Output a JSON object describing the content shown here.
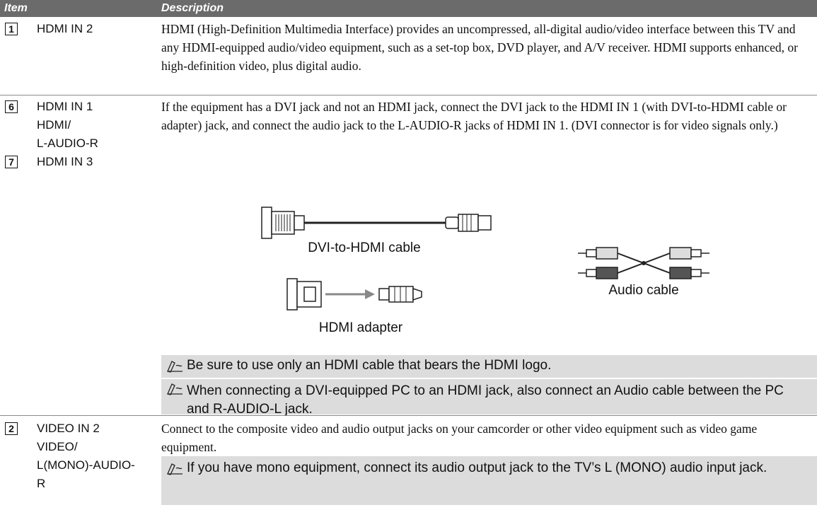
{
  "header": {
    "item": "Item",
    "description": "Description"
  },
  "rows": [
    {
      "entries": [
        {
          "number": "1",
          "lines": [
            "HDMI IN 2"
          ]
        }
      ],
      "description": "HDMI (High-Definition Multimedia Interface) provides an uncompressed, all-digital audio/video interface between this TV and any HDMI-equipped audio/video equipment, such as a set-top box, DVD player, and A/V receiver. HDMI supports enhanced, or high-definition video, plus digital audio."
    },
    {
      "entries": [
        {
          "number": "6",
          "lines": [
            "HDMI IN 1",
            "HDMI/",
            "L-AUDIO-R"
          ]
        },
        {
          "number": "7",
          "lines": [
            "HDMI IN 3"
          ]
        }
      ],
      "description": "If the equipment has a DVI jack and not an HDMI jack, connect the DVI jack to the HDMI IN 1 (with DVI-to-HDMI cable or adapter) jack, and connect the audio jack to the L-AUDIO-R jacks of HDMI IN 1. (DVI connector is for video signals only.)",
      "figures": {
        "dvi_cable": "DVI-to-HDMI cable",
        "adapter": "HDMI adapter",
        "audio_cable": "Audio cable"
      },
      "notes": [
        "Be sure to use only an HDMI cable that bears the HDMI logo.",
        "When connecting a DVI-equipped PC to an HDMI jack, also connect an Audio cable between the PC and R-AUDIO-L jack."
      ]
    },
    {
      "entries": [
        {
          "number": "2",
          "lines": [
            "VIDEO IN 2",
            "VIDEO/",
            "L(MONO)-AUDIO-",
            "R"
          ]
        }
      ],
      "description": "Connect to the composite video and audio output jacks on your camcorder or other video equipment such as video game equipment.",
      "notes": [
        "If you have mono equipment, connect its audio output jack to the TV’s L (MONO) audio input jack."
      ]
    }
  ]
}
